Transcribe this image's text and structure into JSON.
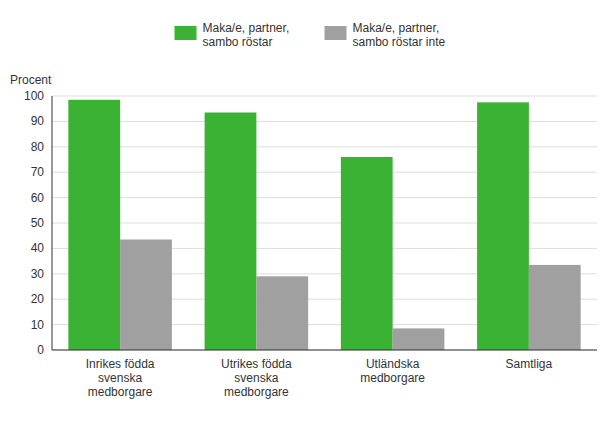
{
  "chart_data": {
    "type": "bar",
    "y_label": "Procent",
    "categories": [
      "Inrikes födda\nsvenska\nmedborgare",
      "Utrikes födda\nsvenska\nmedborgare",
      "Utländska\nmedborgare",
      "Samtliga"
    ],
    "series": [
      {
        "name": "Maka/e, partner,\nsambo röstar",
        "color": "#3ab334",
        "values": [
          98.5,
          93.5,
          76.0,
          97.5
        ]
      },
      {
        "name": "Maka/e, partner,\nsambo röstar inte",
        "color": "#a0a0a0",
        "values": [
          43.5,
          29.0,
          8.5,
          33.5
        ]
      }
    ],
    "ylim": [
      0,
      100
    ],
    "yticks": [
      0,
      10,
      20,
      30,
      40,
      50,
      60,
      70,
      80,
      90,
      100
    ],
    "grid": true,
    "legend": "top"
  }
}
